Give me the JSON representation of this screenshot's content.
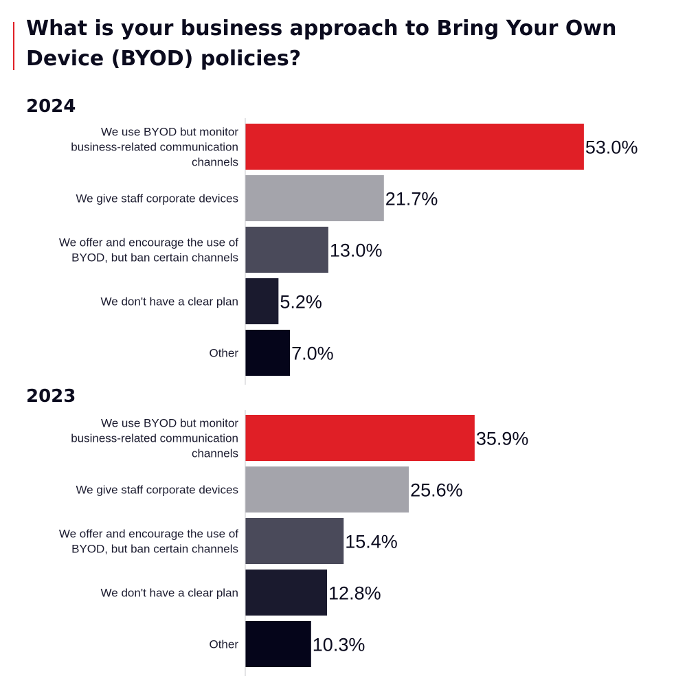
{
  "title": "What is your business approach to Bring Your Own Device (BYOD) policies?",
  "colors": {
    "accent": "#e01f26",
    "series": [
      "#e01f26",
      "#a4a4ab",
      "#4a4a5a",
      "#1a1a2e",
      "#05051a"
    ]
  },
  "chart_data": [
    {
      "type": "bar",
      "orientation": "horizontal",
      "title": "2024",
      "categories": [
        "We use BYOD but monitor business-related communication channels",
        "We give staff corporate devices",
        "We offer and encourage the use of BYOD, but ban certain channels",
        "We don't have a clear plan",
        "Other"
      ],
      "category_lines": [
        [
          "We use BYOD but monitor",
          "business-related communication",
          "channels"
        ],
        [
          "We give staff corporate devices"
        ],
        [
          "We offer and encourage the use of",
          "BYOD, but ban certain channels"
        ],
        [
          "We don't have a clear plan"
        ],
        [
          "Other"
        ]
      ],
      "values": [
        53.0,
        21.7,
        13.0,
        5.2,
        7.0
      ],
      "value_labels": [
        "53.0%",
        "21.7%",
        "13.0%",
        "5.2%",
        "7.0%"
      ],
      "xlim": [
        0,
        100
      ],
      "grid": false
    },
    {
      "type": "bar",
      "orientation": "horizontal",
      "title": "2023",
      "categories": [
        "We use BYOD but monitor business-related communication channels",
        "We give staff corporate devices",
        "We offer and encourage the use of BYOD, but ban certain channels",
        "We don't have a clear plan",
        "Other"
      ],
      "category_lines": [
        [
          "We use BYOD but monitor",
          "business-related communication",
          "channels"
        ],
        [
          "We give staff corporate devices"
        ],
        [
          "We offer and encourage the use of",
          "BYOD, but ban certain channels"
        ],
        [
          "We don't have a clear plan"
        ],
        [
          "Other"
        ]
      ],
      "values": [
        35.9,
        25.6,
        15.4,
        12.8,
        10.3
      ],
      "value_labels": [
        "35.9%",
        "25.6%",
        "15.4%",
        "12.8%",
        "10.3%"
      ],
      "xlim": [
        0,
        100
      ],
      "grid": false
    }
  ]
}
